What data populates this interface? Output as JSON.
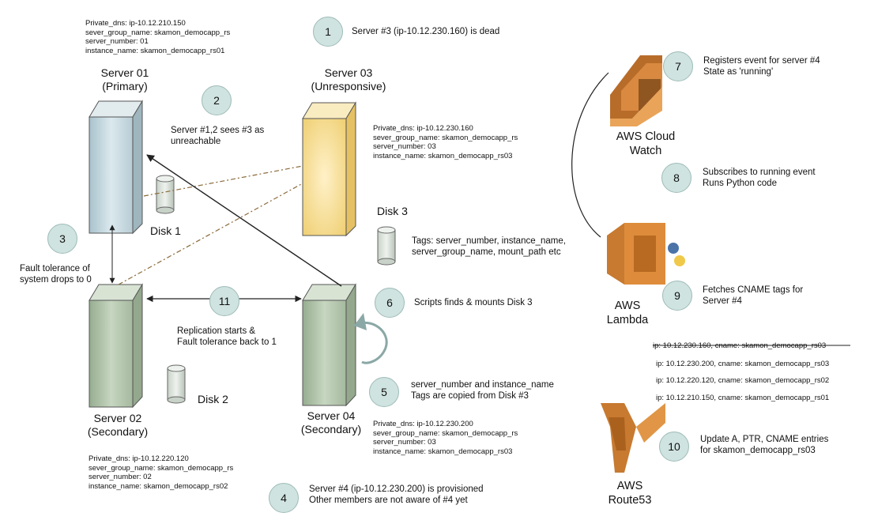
{
  "servers": {
    "s01": {
      "name": "Server 01",
      "role": "(Primary)",
      "info": [
        "Private_dns: ip-10.12.210.150",
        "sever_group_name: skamon_democapp_rs",
        "server_number: 01",
        "instance_name: skamon_democapp_rs01"
      ]
    },
    "s03": {
      "name": "Server 03",
      "role": "(Unresponsive)",
      "info": [
        "Private_dns: ip-10.12.230.160",
        "sever_group_name: skamon_democapp_rs",
        "server_number: 03",
        "instance_name: skamon_democapp_rs03"
      ]
    },
    "s02": {
      "name": "Server 02",
      "role": "(Secondary)",
      "info": [
        "Private_dns: ip-10.12.220.120",
        "sever_group_name: skamon_democapp_rs",
        "server_number: 02",
        "instance_name: skamon_democapp_rs02"
      ]
    },
    "s04": {
      "name": "Server 04",
      "role": "(Secondary)",
      "info": [
        "Private_dns: ip-10.12.230.200",
        "sever_group_name: skamon_democapp_rs",
        "server_number: 03",
        "instance_name: skamon_democapp_rs03"
      ]
    }
  },
  "disks": {
    "d1": "Disk 1",
    "d2": "Disk 2",
    "d3": "Disk 3"
  },
  "steps": [
    {
      "num": "1",
      "text": [
        "Server #3 (ip-10.12.230.160) is dead"
      ]
    },
    {
      "num": "2",
      "text": [
        "Server #1,2 sees #3 as",
        "unreachable"
      ]
    },
    {
      "num": "3",
      "text": [
        "Fault tolerance of",
        "system drops to 0"
      ]
    },
    {
      "num": "4",
      "text": [
        "Server #4 (ip-10.12.230.200) is provisioned",
        "Other members are not aware of #4 yet"
      ]
    },
    {
      "num": "5",
      "text": [
        "server_number and instance_name",
        "Tags are copied from Disk #3"
      ]
    },
    {
      "num": "6",
      "text": [
        "Scripts finds & mounts Disk 3"
      ]
    },
    {
      "num": "7",
      "text": [
        "Registers event for server #4",
        "State as 'running'"
      ]
    },
    {
      "num": "8",
      "text": [
        "Subscribes to running event",
        "Runs Python code"
      ]
    },
    {
      "num": "9",
      "text": [
        "Fetches CNAME tags for",
        "Server #4"
      ]
    },
    {
      "num": "10",
      "text": [
        "Update A, PTR, CNAME entries",
        "for skamon_democapp_rs03"
      ]
    },
    {
      "num": "11",
      "text": [
        "Replication starts &",
        "Fault tolerance back to 1"
      ]
    }
  ],
  "disk3_tags": [
    "Tags: server_number, instance_name,",
    "server_group_name, mount_path etc"
  ],
  "services": {
    "cloudwatch": [
      "AWS Cloud",
      "Watch"
    ],
    "lambda": [
      "AWS",
      "Lambda"
    ],
    "route53": [
      "AWS",
      "Route53"
    ]
  },
  "dns_entries": [
    "ip: 10.12.230.160, cname: skamon_democapp_rs03",
    "ip: 10.12.230.200, cname: skamon_democapp_rs03",
    "ip: 10.12.220.120, cname: skamon_democapp_rs02",
    "ip: 10.12.210.150, cname: skamon_democapp_rs01"
  ],
  "colors": {
    "server_green": "#b7cbb0",
    "server_blue": "#cfe0e6",
    "server_yellow": "#f6df98",
    "aws_orange": "#d6883a",
    "circle_fill": "#cfe3e0"
  }
}
